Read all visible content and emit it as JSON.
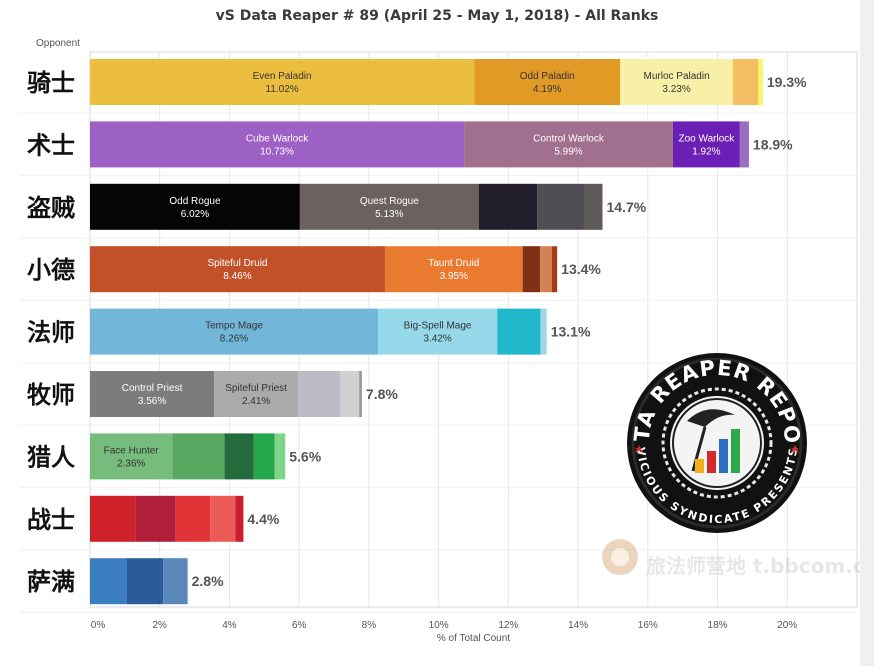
{
  "chart_data": {
    "type": "bar",
    "stacked": true,
    "orientation": "horizontal",
    "title": "vS Data Reaper # 89 (April 25 - May 1, 2018) - All Ranks",
    "row_header": "Opponent",
    "xlabel": "% of Total Count",
    "xlim": [
      0,
      22
    ],
    "xticks": [
      "0%",
      "2%",
      "4%",
      "6%",
      "8%",
      "10%",
      "12%",
      "14%",
      "16%",
      "18%",
      "20%"
    ],
    "grid": true,
    "categories": [
      {
        "name": "骑士",
        "total": "19.3%",
        "segments": [
          {
            "label": "Even Paladin",
            "value": 11.02,
            "value_label": "11.02%",
            "color": "#ecbe3f",
            "text_color": "#333333"
          },
          {
            "label": "Odd Paladin",
            "value": 4.19,
            "value_label": "4.19%",
            "color": "#e29a26",
            "text_color": "#333333"
          },
          {
            "label": "Murloc Paladin",
            "value": 3.23,
            "value_label": "3.23%",
            "color": "#f7f0a6",
            "text_color": "#333333"
          },
          {
            "label": "",
            "value": 0.72,
            "value_label": "",
            "color": "#f6be62",
            "text_color": "#333333"
          },
          {
            "label": "",
            "value": 0.14,
            "value_label": "",
            "color": "#f9f36e",
            "text_color": "#333333"
          }
        ]
      },
      {
        "name": "术士",
        "total": "18.9%",
        "segments": [
          {
            "label": "Cube Warlock",
            "value": 10.73,
            "value_label": "10.73%",
            "color": "#9d60c4",
            "text_color": "#ffffff"
          },
          {
            "label": "Control Warlock",
            "value": 5.99,
            "value_label": "5.99%",
            "color": "#a2708f",
            "text_color": "#ffffff"
          },
          {
            "label": "Zoo Warlock",
            "value": 1.92,
            "value_label": "1.92%",
            "color": "#6c1fb4",
            "text_color": "#ffffff"
          },
          {
            "label": "",
            "value": 0.26,
            "value_label": "",
            "color": "#9b6ec4",
            "text_color": "#ffffff"
          }
        ]
      },
      {
        "name": "盗贼",
        "total": "14.7%",
        "segments": [
          {
            "label": "Odd Rogue",
            "value": 6.02,
            "value_label": "6.02%",
            "color": "#050505",
            "text_color": "#ffffff"
          },
          {
            "label": "Quest Rogue",
            "value": 5.13,
            "value_label": "5.13%",
            "color": "#6b625f",
            "text_color": "#ffffff"
          },
          {
            "label": "",
            "value": 1.68,
            "value_label": "",
            "color": "#211d2b",
            "text_color": "#ffffff"
          },
          {
            "label": "",
            "value": 1.34,
            "value_label": "",
            "color": "#4e4e54",
            "text_color": "#ffffff"
          },
          {
            "label": "",
            "value": 0.53,
            "value_label": "",
            "color": "#5e5a5a",
            "text_color": "#ffffff"
          }
        ]
      },
      {
        "name": "小德",
        "total": "13.4%",
        "segments": [
          {
            "label": "Spiteful Druid",
            "value": 8.46,
            "value_label": "8.46%",
            "color": "#c2512a",
            "text_color": "#ffffff"
          },
          {
            "label": "Taunt Druid",
            "value": 3.95,
            "value_label": "3.95%",
            "color": "#ea7a30",
            "text_color": "#ffffff"
          },
          {
            "label": "",
            "value": 0.5,
            "value_label": "",
            "color": "#7f3017",
            "text_color": "#ffffff"
          },
          {
            "label": "",
            "value": 0.34,
            "value_label": "",
            "color": "#d48059",
            "text_color": "#ffffff"
          },
          {
            "label": "",
            "value": 0.15,
            "value_label": "",
            "color": "#a03e1a",
            "text_color": "#ffffff"
          }
        ]
      },
      {
        "name": "法师",
        "total": "13.1%",
        "segments": [
          {
            "label": "Tempo Mage",
            "value": 8.26,
            "value_label": "8.26%",
            "color": "#72b7da",
            "text_color": "#333333"
          },
          {
            "label": "Big-Spell Mage",
            "value": 3.42,
            "value_label": "3.42%",
            "color": "#95d9ea",
            "text_color": "#333333"
          },
          {
            "label": "",
            "value": 1.24,
            "value_label": "",
            "color": "#22b8cc",
            "text_color": "#333333"
          },
          {
            "label": "",
            "value": 0.18,
            "value_label": "",
            "color": "#9fd7e6",
            "text_color": "#333333"
          }
        ]
      },
      {
        "name": "牧师",
        "total": "7.8%",
        "segments": [
          {
            "label": "Control Priest",
            "value": 3.56,
            "value_label": "3.56%",
            "color": "#7c7c7c",
            "text_color": "#ffffff"
          },
          {
            "label": "Spiteful Priest",
            "value": 2.41,
            "value_label": "2.41%",
            "color": "#aaaaaa",
            "text_color": "#333333"
          },
          {
            "label": "",
            "value": 1.2,
            "value_label": "",
            "color": "#bcbcc8",
            "text_color": "#333333"
          },
          {
            "label": "",
            "value": 0.55,
            "value_label": "",
            "color": "#d0d0d0",
            "text_color": "#333333"
          },
          {
            "label": "",
            "value": 0.08,
            "value_label": "",
            "color": "#9a9a9a",
            "text_color": "#333333"
          }
        ]
      },
      {
        "name": "猎人",
        "total": "5.6%",
        "segments": [
          {
            "label": "Face Hunter",
            "value": 2.36,
            "value_label": "2.36%",
            "color": "#76bc7c",
            "text_color": "#333333"
          },
          {
            "label": "",
            "value": 1.5,
            "value_label": "",
            "color": "#58a862",
            "text_color": "#333333"
          },
          {
            "label": "",
            "value": 0.84,
            "value_label": "",
            "color": "#236b3d",
            "text_color": "#333333"
          },
          {
            "label": "",
            "value": 0.6,
            "value_label": "",
            "color": "#25a84b",
            "text_color": "#333333"
          },
          {
            "label": "",
            "value": 0.3,
            "value_label": "",
            "color": "#7ed487",
            "text_color": "#333333"
          }
        ]
      },
      {
        "name": "战士",
        "total": "4.4%",
        "segments": [
          {
            "label": "",
            "value": 1.3,
            "value_label": "",
            "color": "#cf2129",
            "text_color": "#ffffff"
          },
          {
            "label": "",
            "value": 1.15,
            "value_label": "",
            "color": "#b01e3a",
            "text_color": "#ffffff"
          },
          {
            "label": "",
            "value": 1.0,
            "value_label": "",
            "color": "#e03437",
            "text_color": "#ffffff"
          },
          {
            "label": "",
            "value": 0.72,
            "value_label": "",
            "color": "#ec5a58",
            "text_color": "#ffffff"
          },
          {
            "label": "",
            "value": 0.23,
            "value_label": "",
            "color": "#c81e2e",
            "text_color": "#ffffff"
          }
        ]
      },
      {
        "name": "萨满",
        "total": "2.8%",
        "segments": [
          {
            "label": "",
            "value": 1.05,
            "value_label": "",
            "color": "#3a7dc0",
            "text_color": "#ffffff"
          },
          {
            "label": "",
            "value": 1.05,
            "value_label": "",
            "color": "#2b5b98",
            "text_color": "#ffffff"
          },
          {
            "label": "",
            "value": 0.7,
            "value_label": "",
            "color": "#5887b8",
            "text_color": "#ffffff"
          }
        ]
      }
    ]
  },
  "logo": {
    "top_text": "DATA REAPER REPORT",
    "bottom_text": "VICIOUS SYNDICATE PRESENTS"
  },
  "watermark": {
    "text": "旅法师营地 t.bbcom.com"
  }
}
